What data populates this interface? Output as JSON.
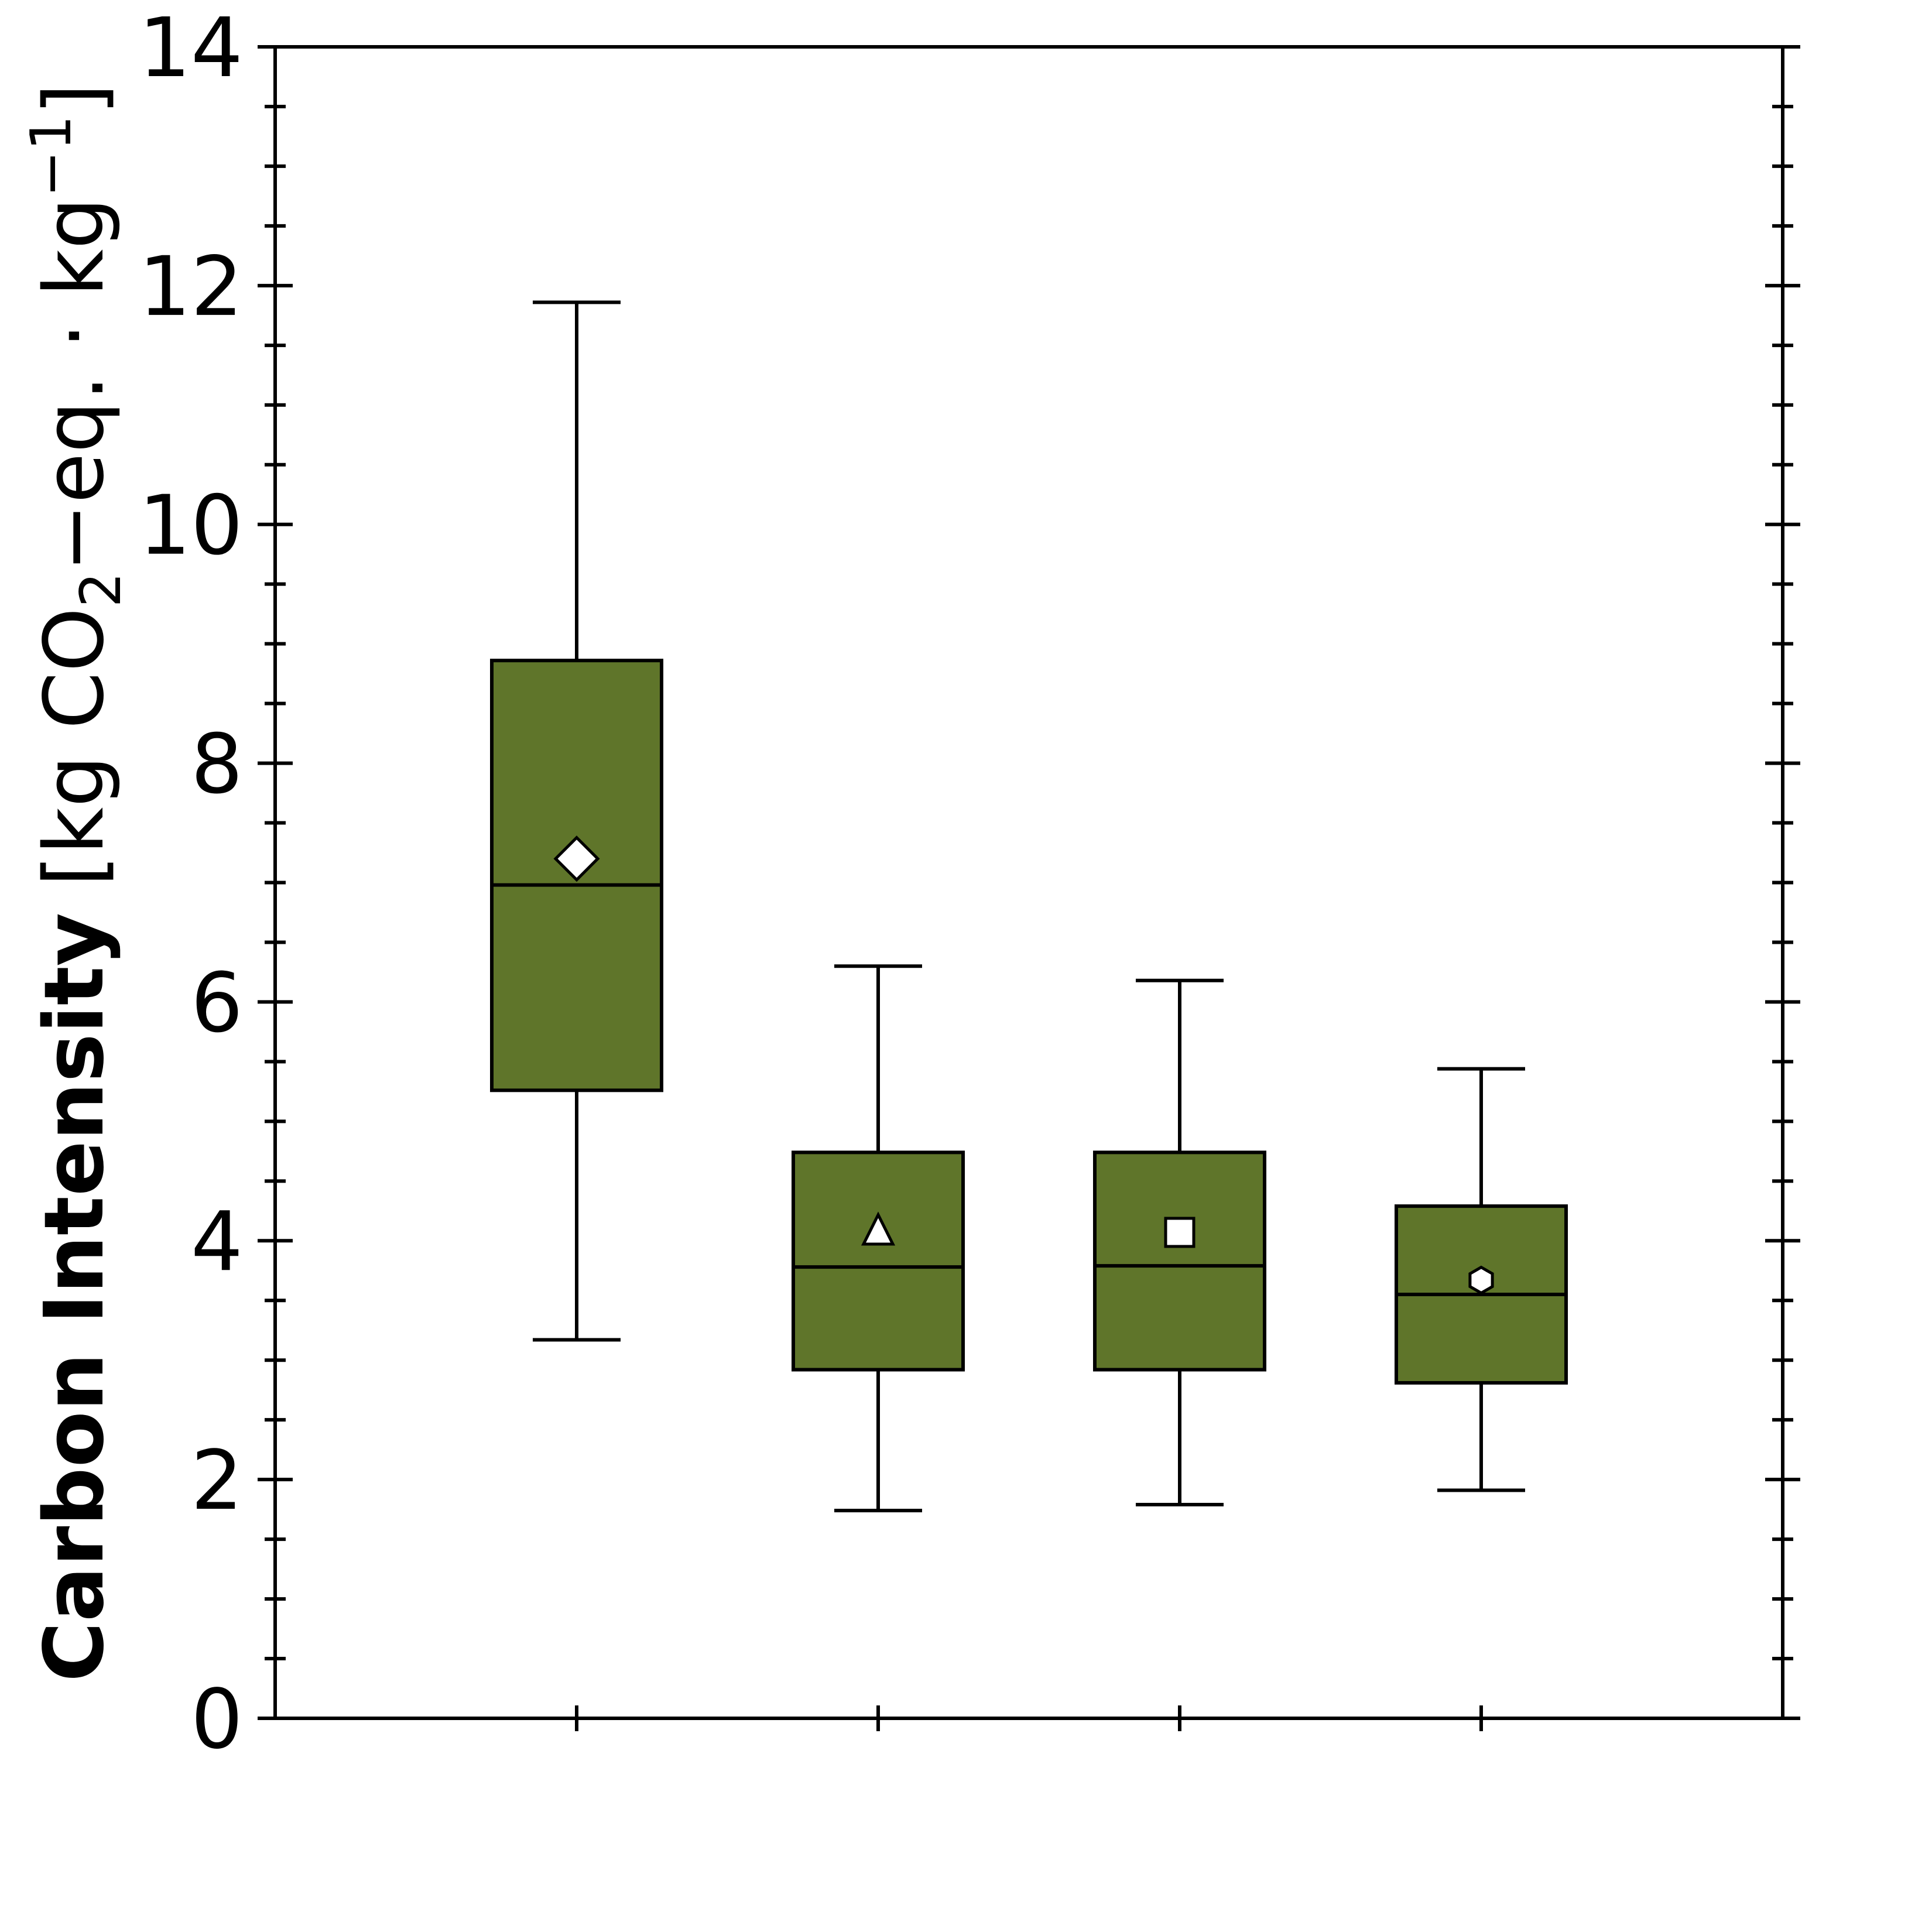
{
  "chart_data": {
    "type": "box",
    "title": "",
    "xlabel": "",
    "ylabel": {
      "bold": "Carbon Intensity",
      "unit_open": " [kg CO",
      "unit_sub": "2",
      "unit_mid": "−eq. · kg",
      "unit_sup": "−1",
      "unit_close": "]"
    },
    "ylim": [
      0,
      14
    ],
    "yticks": [
      0,
      2,
      4,
      6,
      8,
      10,
      12,
      14
    ],
    "ytick_labels": [
      "0",
      "2",
      "4",
      "6",
      "8",
      "10",
      "12",
      "14"
    ],
    "minor_tick_step": 0.5,
    "grid": false,
    "box_color": "#5f752a",
    "edge_color": "#000000",
    "mean_marker_color": "#ffffff",
    "boxes": [
      {
        "whisker_low": 3.17,
        "q1": 5.26,
        "median": 6.98,
        "q3": 8.86,
        "whisker_high": 11.86,
        "mean": 7.2,
        "mean_marker": "diamond"
      },
      {
        "whisker_low": 1.74,
        "q1": 2.92,
        "median": 3.78,
        "q3": 4.74,
        "whisker_high": 6.3,
        "mean": 4.07,
        "mean_marker": "triangle"
      },
      {
        "whisker_low": 1.79,
        "q1": 2.92,
        "median": 3.79,
        "q3": 4.74,
        "whisker_high": 6.18,
        "mean": 4.07,
        "mean_marker": "square"
      },
      {
        "whisker_low": 1.91,
        "q1": 2.81,
        "median": 3.55,
        "q3": 4.29,
        "whisker_high": 5.44,
        "mean": 3.67,
        "mean_marker": "hexagon"
      }
    ]
  }
}
